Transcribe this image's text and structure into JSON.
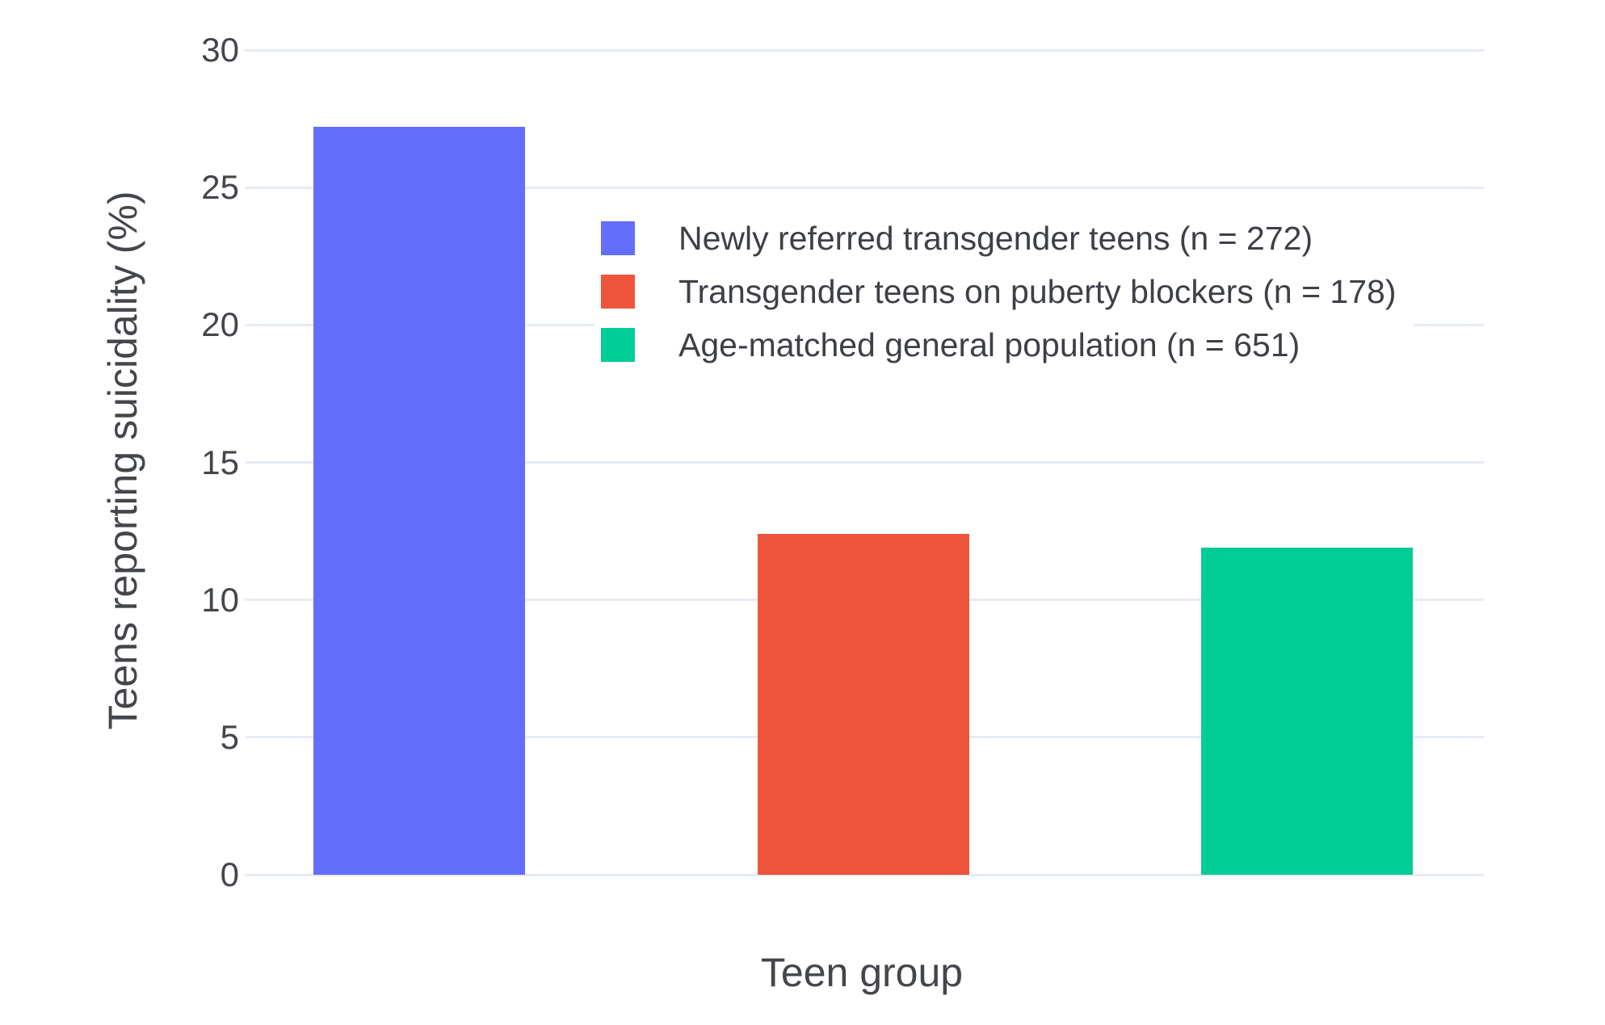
{
  "chart_data": {
    "type": "bar",
    "categories": [
      "Newly referred transgender teens (n = 272)",
      "Transgender teens on puberty blockers (n = 178)",
      "Age-matched general population (n = 651)"
    ],
    "values": [
      27.2,
      12.4,
      11.9
    ],
    "colors": [
      "#636efa",
      "#ef553b",
      "#00cc96"
    ],
    "title": "",
    "xlabel": "Teen group",
    "ylabel": "Teens reporting suicidality (%)",
    "ylim": [
      0,
      30
    ],
    "yticks": [
      0,
      5,
      10,
      15,
      20,
      25,
      30
    ],
    "grid": true,
    "legend_position": "inside-top",
    "background_color": "#ffffff",
    "gridline_color": "#e7ebf4",
    "text_color": "#43464b"
  }
}
